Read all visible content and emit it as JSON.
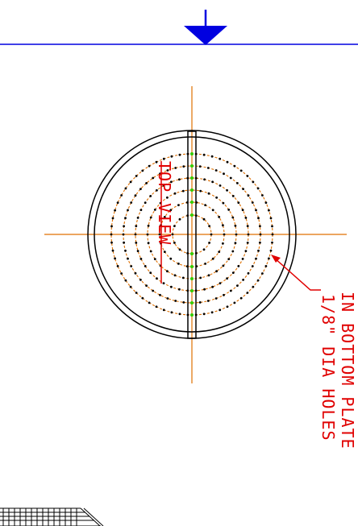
{
  "colors": {
    "background": "#ffffff",
    "outline": "#000000",
    "centerline": "#e07000",
    "annotation_red": "#e00000",
    "reference_blue": "#0000e0",
    "hole_green": "#33cc00"
  },
  "labels": {
    "view_title": "TOP VIEW",
    "callout_line1": "1/8\" DIA HOLES",
    "callout_line2": "IN BOTTOM PLATE"
  },
  "icons": {
    "section_arrow": "down-arrow-icon",
    "hatch": "hatch-pattern"
  },
  "hole_pattern": {
    "ring_count": 6,
    "holes_per_ring": [
      14,
      22,
      32,
      42,
      52,
      62
    ]
  }
}
